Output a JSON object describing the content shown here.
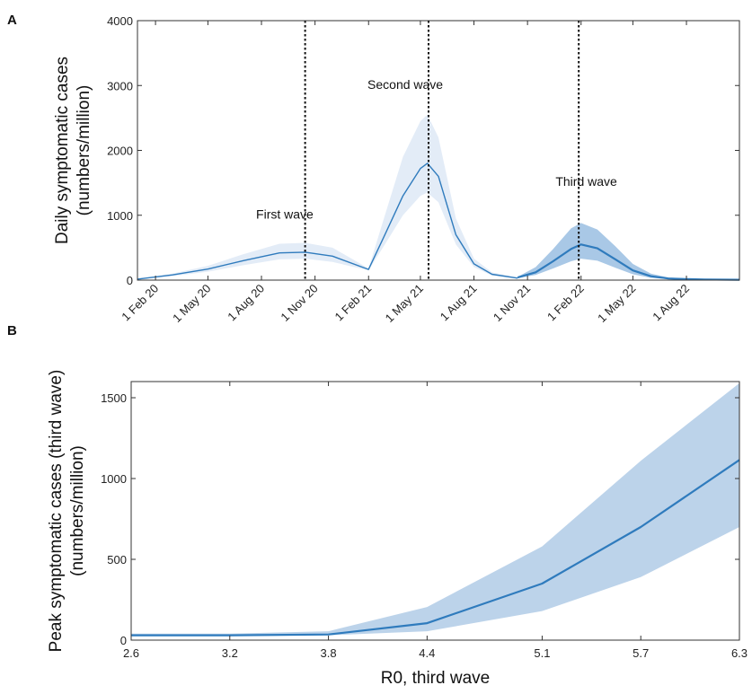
{
  "panels": {
    "a": "A",
    "b": "B"
  },
  "colors": {
    "line": "#2f7bbd",
    "band_light": "#e3ecf7",
    "band_dark": "#a9c8e6",
    "band_b": "#bcd3ea"
  },
  "chart_data": [
    {
      "type": "line",
      "panel": "A",
      "ylabel_lines": [
        "Daily symptomatic cases",
        "(numbers/million)"
      ],
      "xlabel": "",
      "ylim": [
        0,
        4000
      ],
      "yticks": [
        0,
        1000,
        2000,
        3000,
        4000
      ],
      "ytick_labels": [
        "0",
        "1000",
        "2000",
        "3000",
        "4000"
      ],
      "xlim": [
        "2020-01-01",
        "2022-10-31"
      ],
      "xticks": [
        "2020-02-01",
        "2020-05-01",
        "2020-08-01",
        "2020-11-01",
        "2021-02-01",
        "2021-05-01",
        "2021-08-01",
        "2021-11-01",
        "2022-02-01",
        "2022-05-01",
        "2022-08-01"
      ],
      "xtick_labels": [
        "1 Feb 20",
        "1 May 20",
        "1 Aug 20",
        "1 Nov 20",
        "1 Feb 21",
        "1 May 21",
        "1 Aug 21",
        "1 Nov 21",
        "1 Feb 22",
        "1 May 22",
        "1 Aug 22"
      ],
      "grid": false,
      "series": [
        {
          "style": "thin",
          "x": [
            "2020-01-01",
            "2020-03-01",
            "2020-05-01",
            "2020-07-01",
            "2020-09-01",
            "2020-10-15",
            "2020-12-01",
            "2021-02-01",
            "2021-03-01",
            "2021-04-01",
            "2021-05-01",
            "2021-05-13",
            "2021-06-01",
            "2021-07-01",
            "2021-08-01",
            "2021-09-01",
            "2021-10-15"
          ],
          "y": [
            15,
            80,
            170,
            300,
            420,
            430,
            370,
            165,
            700,
            1300,
            1720,
            1800,
            1600,
            700,
            250,
            90,
            30
          ],
          "lower": [
            10,
            60,
            130,
            230,
            320,
            330,
            280,
            150,
            550,
            1000,
            1300,
            1350,
            1200,
            550,
            200,
            70,
            25
          ],
          "upper": [
            20,
            100,
            220,
            400,
            560,
            575,
            500,
            180,
            1000,
            1900,
            2450,
            2550,
            2200,
            950,
            330,
            120,
            40
          ]
        },
        {
          "style": "thick",
          "x": [
            "2021-10-15",
            "2021-11-15",
            "2021-12-15",
            "2022-01-15",
            "2022-02-01",
            "2022-03-01",
            "2022-04-01",
            "2022-05-01",
            "2022-06-01",
            "2022-07-01",
            "2022-08-01",
            "2022-09-01",
            "2022-10-31"
          ],
          "y": [
            40,
            120,
            290,
            480,
            550,
            490,
            320,
            150,
            60,
            25,
            15,
            10,
            5
          ],
          "lower": [
            30,
            80,
            180,
            290,
            330,
            300,
            190,
            90,
            35,
            15,
            10,
            6,
            3
          ],
          "upper": [
            50,
            200,
            480,
            800,
            880,
            780,
            520,
            250,
            100,
            40,
            25,
            15,
            8
          ]
        }
      ],
      "vlines": [
        "2020-10-15",
        "2021-05-15",
        "2022-01-28"
      ],
      "annotations": [
        {
          "text": "First wave",
          "x": "2020-09-10",
          "y": 950
        },
        {
          "text": "Second wave",
          "x": "2021-04-05",
          "y": 2950
        },
        {
          "text": "Third wave",
          "x": "2022-02-10",
          "y": 1450
        }
      ]
    },
    {
      "type": "line",
      "panel": "B",
      "xlabel": "R0, third wave",
      "ylabel_lines": [
        "Peak symptomatic cases (third wave)",
        "(numbers/million)"
      ],
      "xlim": [
        2.6,
        6.3
      ],
      "ylim": [
        0,
        1600
      ],
      "xticks": [
        2.6,
        3.2,
        3.8,
        4.4,
        5.1,
        5.7,
        6.3
      ],
      "xtick_labels": [
        "2.6",
        "3.2",
        "3.8",
        "4.4",
        "5.1",
        "5.7",
        "6.3"
      ],
      "yticks": [
        0,
        500,
        1000,
        1500
      ],
      "ytick_labels": [
        "0",
        "500",
        "1000",
        "1500"
      ],
      "grid": false,
      "series": [
        {
          "x": [
            2.6,
            3.2,
            3.8,
            4.4,
            5.1,
            5.7,
            6.3
          ],
          "y": [
            30,
            30,
            35,
            105,
            350,
            700,
            1115
          ],
          "lower": [
            25,
            25,
            30,
            55,
            180,
            390,
            700
          ],
          "upper": [
            40,
            40,
            55,
            205,
            580,
            1110,
            1590
          ]
        }
      ]
    }
  ]
}
